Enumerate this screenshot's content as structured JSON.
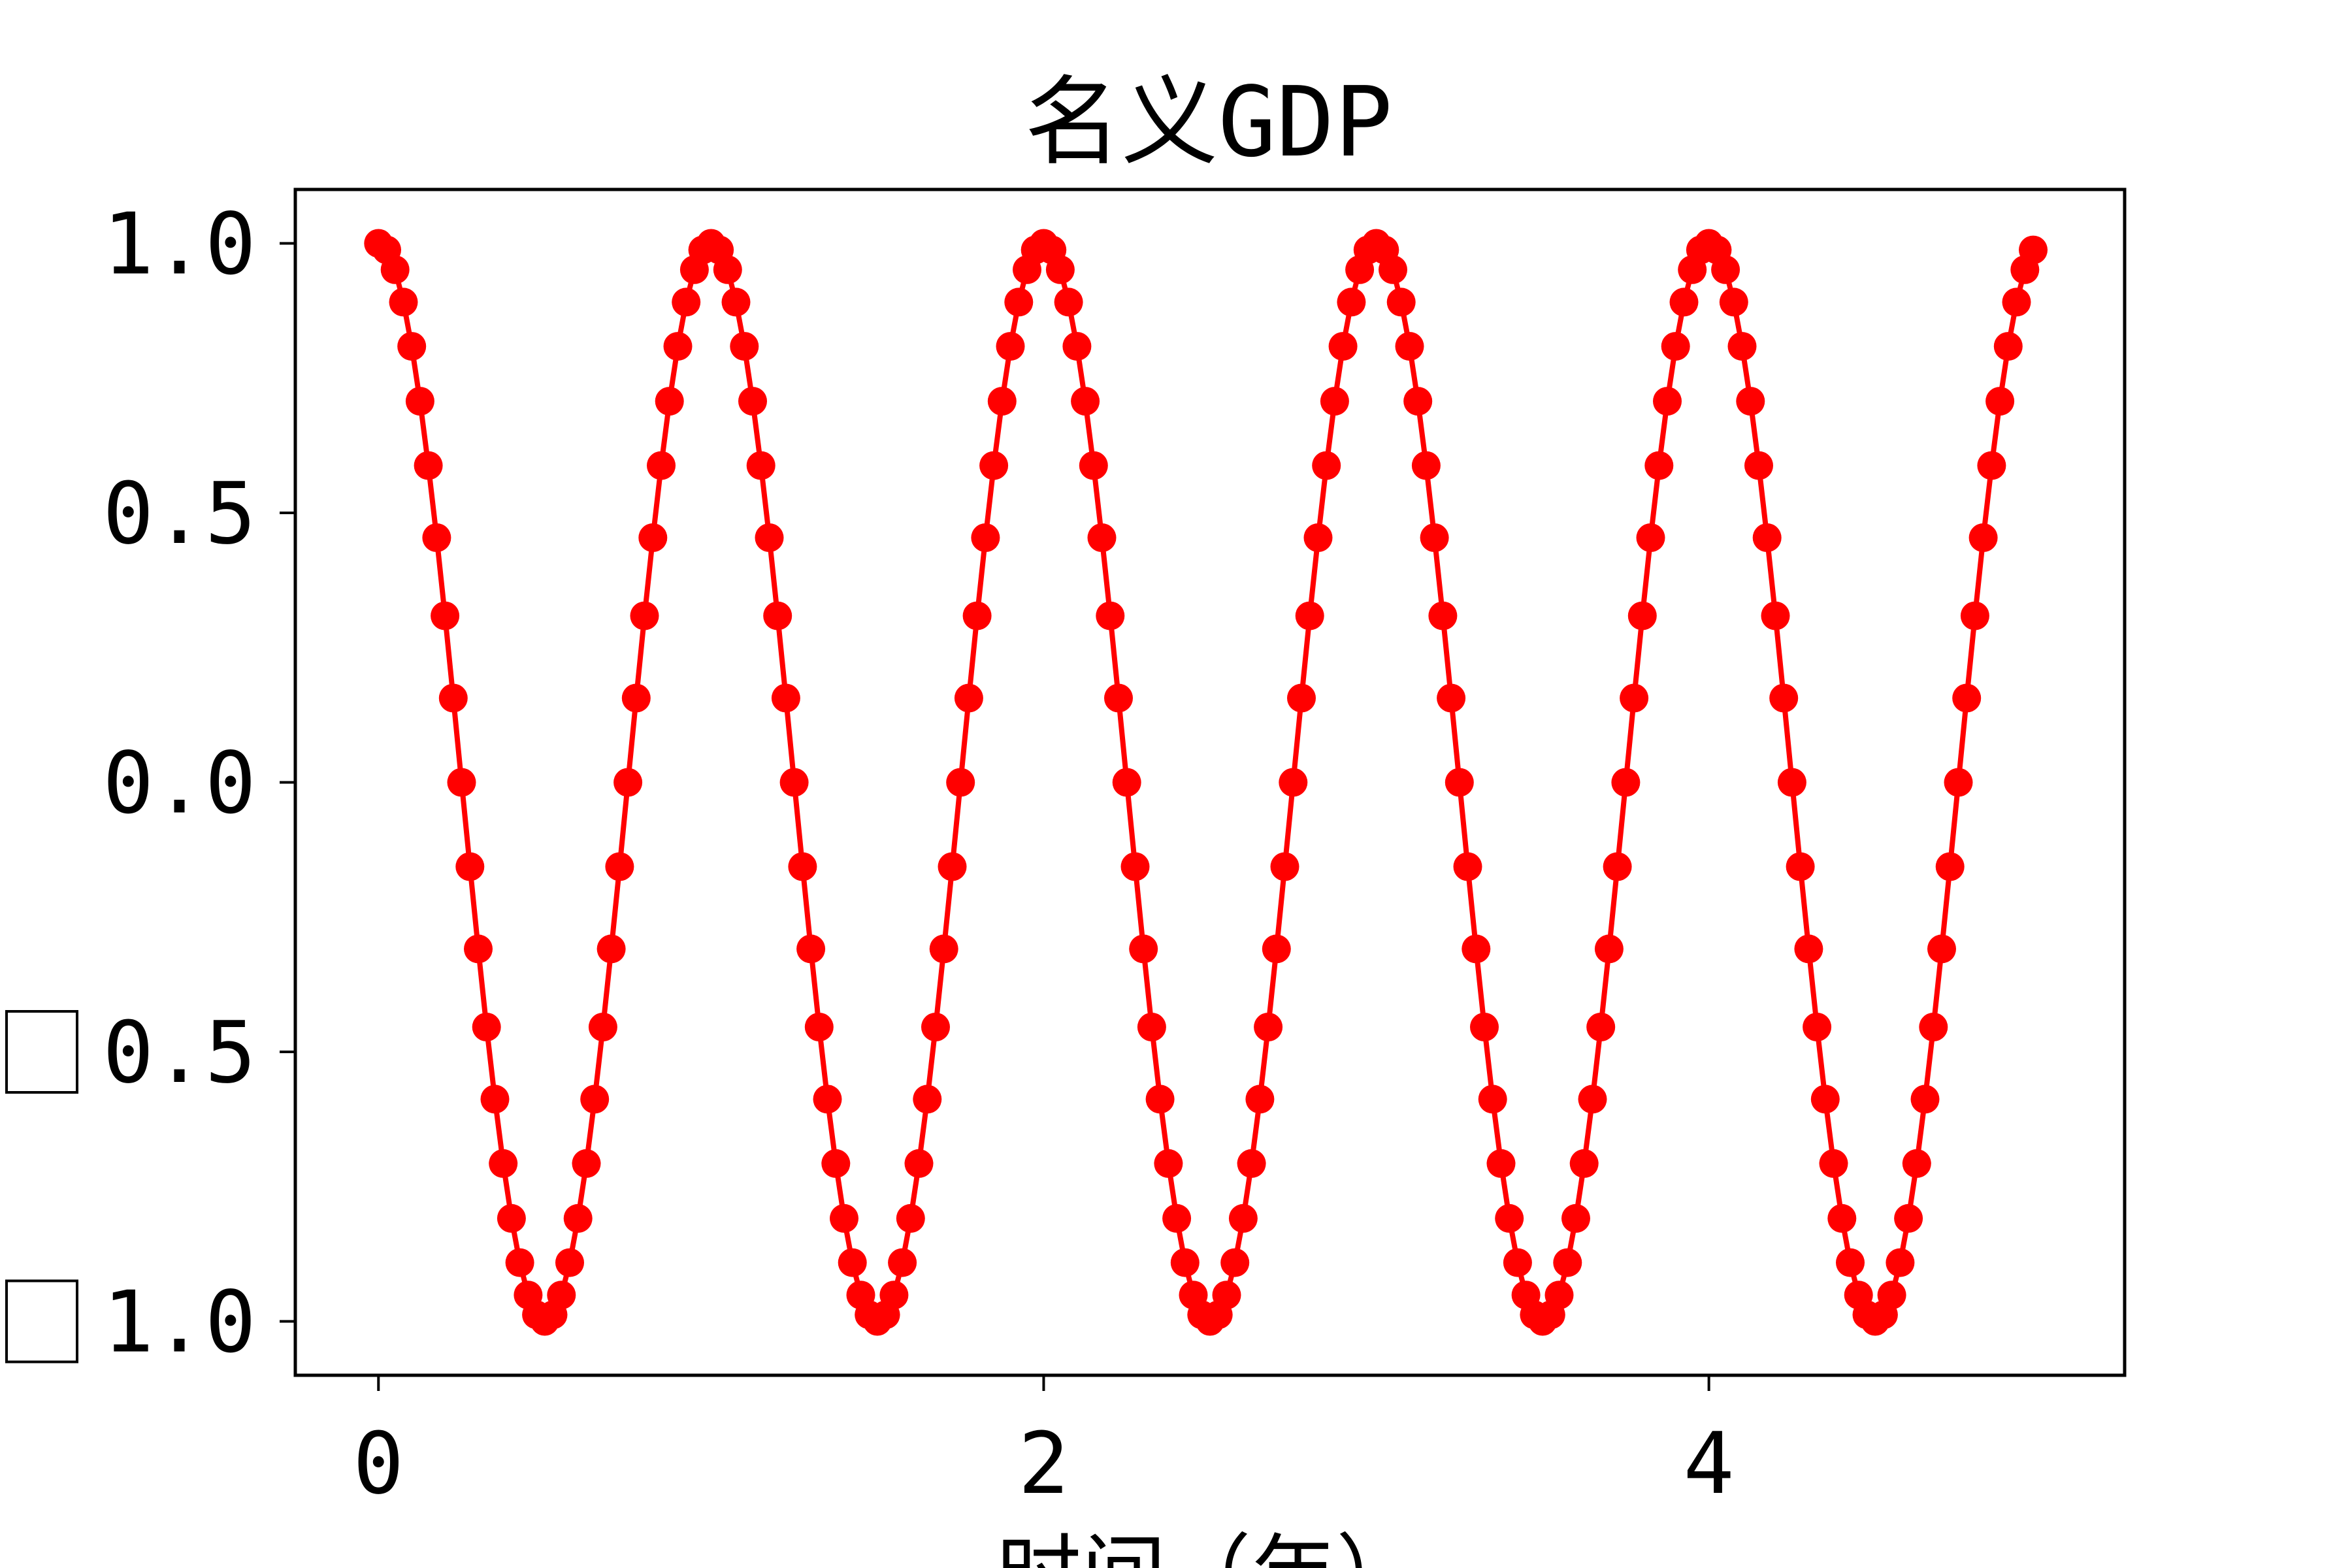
{
  "chart_data": {
    "type": "line",
    "title": "名义GDP",
    "xlabel": "时间（年）",
    "ylabel": "",
    "xlim": [
      -0.25,
      5.25
    ],
    "ylim": [
      -1.1,
      1.1
    ],
    "x_ticks": [
      0,
      2,
      4
    ],
    "x_tick_labels": [
      "0",
      "2",
      "4"
    ],
    "y_ticks": [
      1.0,
      0.5,
      0.0,
      -0.5,
      -1.0
    ],
    "y_tick_labels": [
      "1.0",
      "0.5",
      "0.0",
      "−0.5",
      "−1.0"
    ],
    "grid": false,
    "legend": "none",
    "series": [
      {
        "color": "#ff0000",
        "marker": "circle",
        "x": [
          0.0,
          0.025,
          0.05,
          0.075,
          0.1,
          0.125,
          0.15,
          0.175,
          0.2,
          0.225,
          0.25,
          0.275,
          0.3,
          0.325,
          0.35,
          0.375,
          0.4,
          0.425,
          0.45,
          0.475,
          0.5,
          0.525,
          0.55,
          0.575,
          0.6,
          0.625,
          0.65,
          0.675,
          0.7,
          0.725,
          0.75,
          0.775,
          0.8,
          0.825,
          0.85,
          0.875,
          0.9,
          0.925,
          0.95,
          0.975,
          1.0,
          1.025,
          1.05,
          1.075,
          1.1,
          1.125,
          1.15,
          1.175,
          1.2,
          1.225,
          1.25,
          1.275,
          1.3,
          1.325,
          1.35,
          1.375,
          1.4,
          1.425,
          1.45,
          1.475,
          1.5,
          1.525,
          1.55,
          1.575,
          1.6,
          1.625,
          1.65,
          1.675,
          1.7,
          1.725,
          1.75,
          1.775,
          1.8,
          1.825,
          1.85,
          1.875,
          1.9,
          1.925,
          1.95,
          1.975,
          2.0,
          2.025,
          2.05,
          2.075,
          2.1,
          2.125,
          2.15,
          2.175,
          2.2,
          2.225,
          2.25,
          2.275,
          2.3,
          2.325,
          2.35,
          2.375,
          2.4,
          2.425,
          2.45,
          2.475,
          2.5,
          2.525,
          2.55,
          2.575,
          2.6,
          2.625,
          2.65,
          2.675,
          2.7,
          2.725,
          2.75,
          2.775,
          2.8,
          2.825,
          2.85,
          2.875,
          2.9,
          2.925,
          2.95,
          2.975,
          3.0,
          3.025,
          3.05,
          3.075,
          3.1,
          3.125,
          3.15,
          3.175,
          3.2,
          3.225,
          3.25,
          3.275,
          3.3,
          3.325,
          3.35,
          3.375,
          3.4,
          3.425,
          3.45,
          3.475,
          3.5,
          3.525,
          3.55,
          3.575,
          3.6,
          3.625,
          3.65,
          3.675,
          3.7,
          3.725,
          3.75,
          3.775,
          3.8,
          3.825,
          3.85,
          3.875,
          3.9,
          3.925,
          3.95,
          3.975,
          4.0,
          4.025,
          4.05,
          4.075,
          4.1,
          4.125,
          4.15,
          4.175,
          4.2,
          4.225,
          4.25,
          4.275,
          4.3,
          4.325,
          4.35,
          4.375,
          4.4,
          4.425,
          4.45,
          4.475,
          4.5,
          4.525,
          4.55,
          4.575,
          4.6,
          4.625,
          4.65,
          4.675,
          4.7,
          4.725,
          4.75,
          4.775,
          4.8,
          4.825,
          4.85,
          4.875,
          4.9,
          4.925,
          4.95,
          4.975
        ],
        "y": [
          1.0,
          0.9877,
          0.9511,
          0.891,
          0.809,
          0.7071,
          0.5878,
          0.454,
          0.309,
          0.1564,
          0.0,
          -0.1564,
          -0.309,
          -0.454,
          -0.5878,
          -0.7071,
          -0.809,
          -0.891,
          -0.9511,
          -0.9877,
          -1.0,
          -0.9877,
          -0.9511,
          -0.891,
          -0.809,
          -0.7071,
          -0.5878,
          -0.454,
          -0.309,
          -0.1564,
          0.0,
          0.1564,
          0.309,
          0.454,
          0.5878,
          0.7071,
          0.809,
          0.891,
          0.9511,
          0.9877,
          1.0,
          0.9877,
          0.9511,
          0.891,
          0.809,
          0.7071,
          0.5878,
          0.454,
          0.309,
          0.1564,
          0.0,
          -0.1564,
          -0.309,
          -0.454,
          -0.5878,
          -0.7071,
          -0.809,
          -0.891,
          -0.9511,
          -0.9877,
          -1.0,
          -0.9877,
          -0.9511,
          -0.891,
          -0.809,
          -0.7071,
          -0.5878,
          -0.454,
          -0.309,
          -0.1564,
          0.0,
          0.1564,
          0.309,
          0.454,
          0.5878,
          0.7071,
          0.809,
          0.891,
          0.9511,
          0.9877,
          1.0,
          0.9877,
          0.9511,
          0.891,
          0.809,
          0.7071,
          0.5878,
          0.454,
          0.309,
          0.1564,
          0.0,
          -0.1564,
          -0.309,
          -0.454,
          -0.5878,
          -0.7071,
          -0.809,
          -0.891,
          -0.9511,
          -0.9877,
          -1.0,
          -0.9877,
          -0.9511,
          -0.891,
          -0.809,
          -0.7071,
          -0.5878,
          -0.454,
          -0.309,
          -0.1564,
          0.0,
          0.1564,
          0.309,
          0.454,
          0.5878,
          0.7071,
          0.809,
          0.891,
          0.9511,
          0.9877,
          1.0,
          0.9877,
          0.9511,
          0.891,
          0.809,
          0.7071,
          0.5878,
          0.454,
          0.309,
          0.1564,
          0.0,
          -0.1564,
          -0.309,
          -0.454,
          -0.5878,
          -0.7071,
          -0.809,
          -0.891,
          -0.9511,
          -0.9877,
          -1.0,
          -0.9877,
          -0.9511,
          -0.891,
          -0.809,
          -0.7071,
          -0.5878,
          -0.454,
          -0.309,
          -0.1564,
          0.0,
          0.1564,
          0.309,
          0.454,
          0.5878,
          0.7071,
          0.809,
          0.891,
          0.9511,
          0.9877,
          1.0,
          0.9877,
          0.9511,
          0.891,
          0.809,
          0.7071,
          0.5878,
          0.454,
          0.309,
          0.1564,
          0.0,
          -0.1564,
          -0.309,
          -0.454,
          -0.5878,
          -0.7071,
          -0.809,
          -0.891,
          -0.9511,
          -0.9877,
          -1.0,
          -0.9877,
          -0.9511,
          -0.891,
          -0.809,
          -0.7071,
          -0.5878,
          -0.454,
          -0.309,
          -0.1564,
          0.0,
          0.1564,
          0.309,
          0.454,
          0.5878,
          0.7071,
          0.809,
          0.891,
          0.9511,
          0.9877
        ]
      }
    ]
  }
}
